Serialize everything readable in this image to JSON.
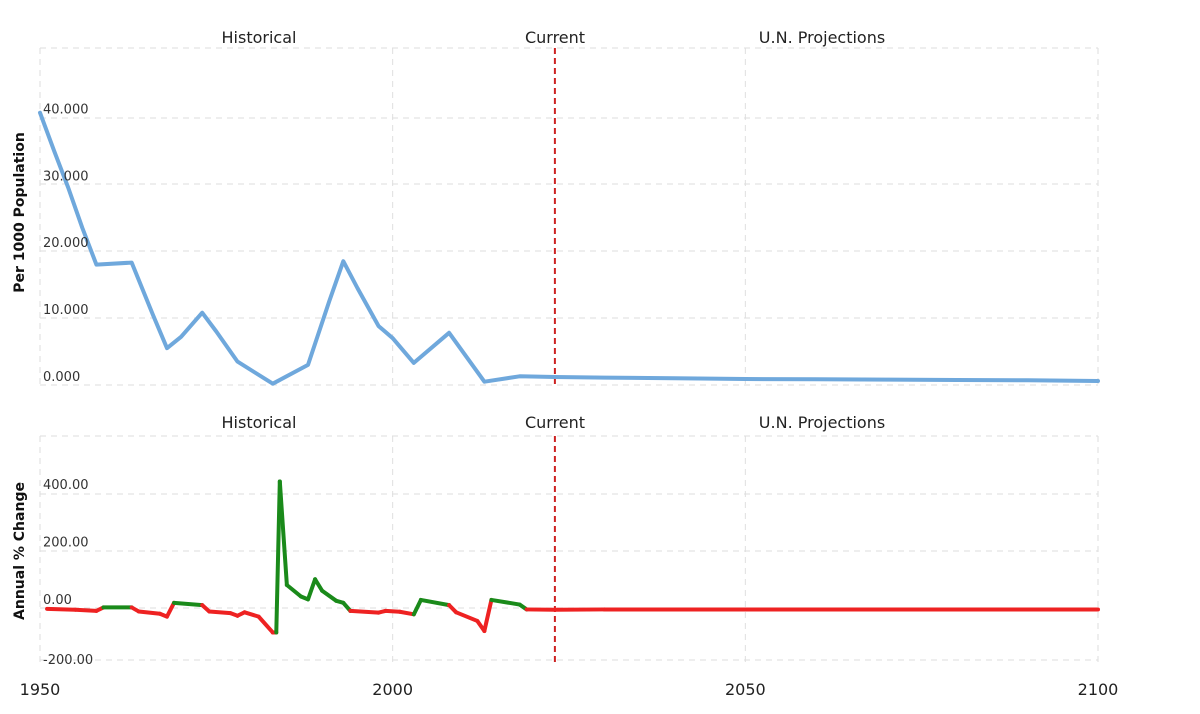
{
  "colors": {
    "upper_line": "#6fa8dc",
    "increase": "#1a8a1a",
    "decrease": "#ee2222",
    "current_marker": "#cc2222"
  },
  "chart_data": [
    {
      "type": "line",
      "ylabel": "Per 1000 Population",
      "period_labels": [
        "Historical",
        "Current",
        "U.N. Projections"
      ],
      "current_year": 2023,
      "xlim": [
        1950,
        2100
      ],
      "ylim": [
        0,
        48
      ],
      "y_ticks": [
        "0.000",
        "10.000",
        "20.000",
        "30.000",
        "40.000"
      ],
      "grid": true,
      "series": [
        {
          "x": [
            1950,
            1952,
            1954,
            1956,
            1958,
            1963,
            1966,
            1968,
            1970,
            1973,
            1975,
            1978,
            1983,
            1988,
            1991,
            1993,
            1995,
            1998,
            2000,
            2003,
            2008,
            2013,
            2018,
            2023,
            2030,
            2040,
            2050,
            2060,
            2070,
            2080,
            2090,
            2100
          ],
          "y": [
            40.7,
            35.0,
            29.5,
            23.5,
            18.0,
            18.3,
            10.5,
            5.5,
            7.2,
            10.8,
            8.0,
            3.5,
            0.2,
            3.0,
            12.5,
            18.5,
            14.5,
            8.8,
            7.0,
            3.3,
            7.8,
            0.5,
            1.3,
            1.2,
            1.1,
            1.0,
            0.9,
            0.85,
            0.8,
            0.75,
            0.7,
            0.6
          ]
        }
      ]
    },
    {
      "type": "line",
      "ylabel": "Annual % Change",
      "period_labels": [
        "Historical",
        "Current",
        "U.N. Projections"
      ],
      "current_year": 2023,
      "xlim": [
        1950,
        2100
      ],
      "ylim": [
        -200,
        600
      ],
      "y_ticks": [
        "-200.00",
        "0.00",
        "200.00",
        "400.00"
      ],
      "x_ticks": [
        "1950",
        "2000",
        "2050",
        "2100"
      ],
      "grid": true,
      "series": [
        {
          "x": [
            1951,
            1955,
            1958,
            1959,
            1963,
            1964,
            1967,
            1968,
            1969,
            1973,
            1974,
            1977,
            1978,
            1979,
            1981,
            1983,
            1983.5,
            1984,
            1985,
            1987,
            1988,
            1989,
            1990,
            1992,
            1993,
            1994,
            1998,
            1999,
            2001,
            2003,
            2004,
            2008,
            2009,
            2012,
            2013,
            2014,
            2018,
            2019,
            2023,
            2030,
            2040,
            2050,
            2060,
            2070,
            2080,
            2090,
            2100
          ],
          "y": [
            -3,
            -6,
            -10,
            2,
            2,
            -12,
            -20,
            -30,
            18,
            10,
            -12,
            -18,
            -27,
            -15,
            -30,
            -85,
            -85,
            440,
            80,
            40,
            30,
            100,
            60,
            25,
            18,
            -10,
            -16,
            -10,
            -13,
            -22,
            28,
            10,
            -15,
            -45,
            -80,
            28,
            12,
            -5,
            -6,
            -5,
            -5,
            -5,
            -5,
            -5,
            -5,
            -5,
            -5
          ]
        }
      ]
    }
  ]
}
